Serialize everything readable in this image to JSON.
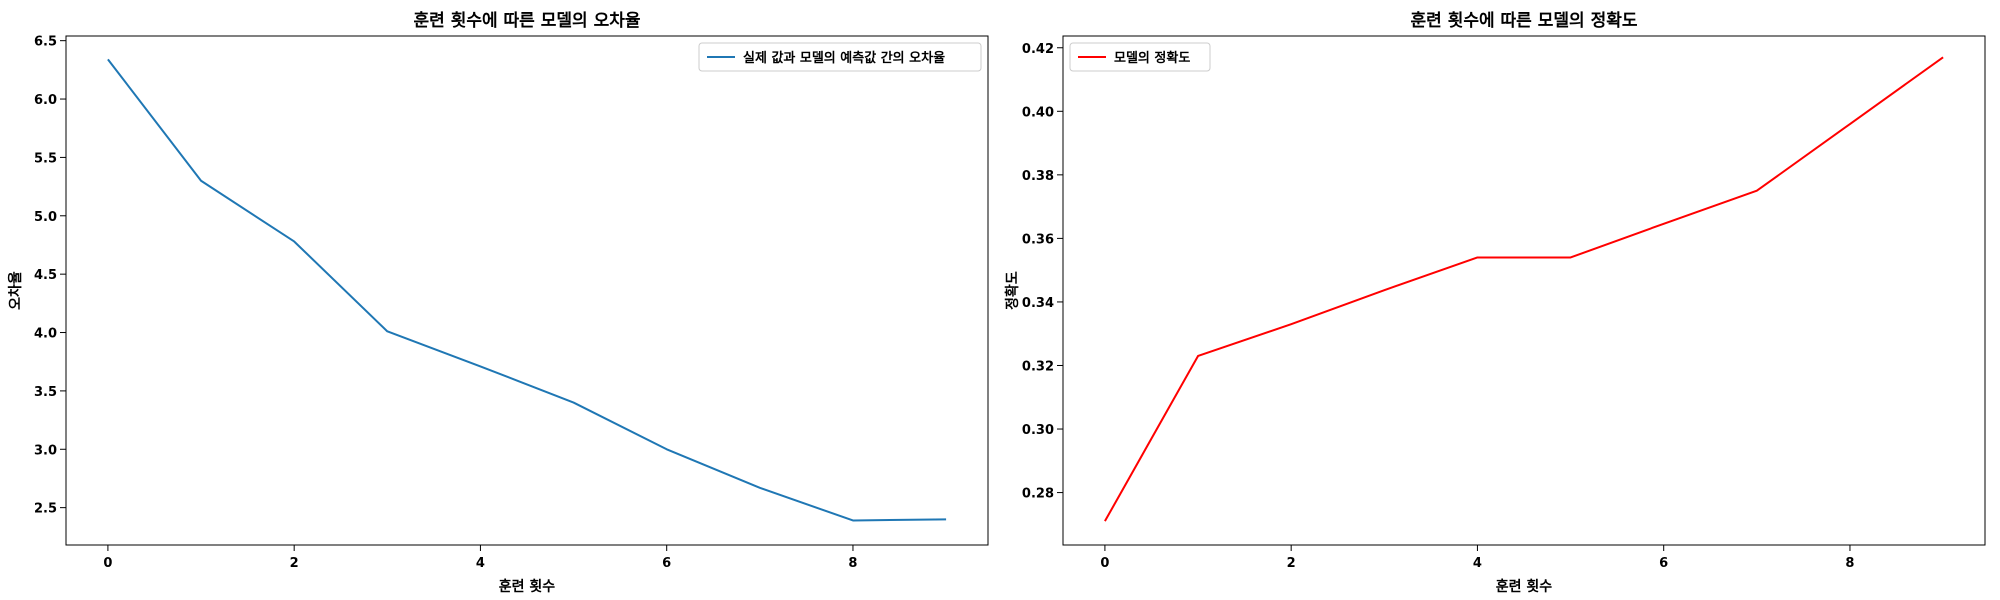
{
  "chart_data": [
    {
      "type": "line",
      "title": "훈련 횟수에 따른 모델의 오차율",
      "xlabel": "훈련 횟수",
      "ylabel": "오차율",
      "x": [
        0,
        1,
        2,
        3,
        4,
        5,
        6,
        7,
        8,
        9
      ],
      "xlim": [
        -0.45,
        9.45
      ],
      "ylim": [
        2.18,
        6.54
      ],
      "xticks": [
        0,
        2,
        4,
        6,
        8
      ],
      "yticks": [
        2.5,
        3.0,
        3.5,
        4.0,
        4.5,
        5.0,
        5.5,
        6.0,
        6.5
      ],
      "ytick_labels": [
        "2.5",
        "3.0",
        "3.5",
        "4.0",
        "4.5",
        "5.0",
        "5.5",
        "6.0",
        "6.5"
      ],
      "legend_position": "top-right",
      "series": [
        {
          "name": "실제 값과 모델의 예측값 간의 오차율",
          "color": "#1f77b4",
          "values": [
            6.34,
            5.3,
            4.78,
            4.01,
            3.71,
            3.4,
            3.0,
            2.67,
            2.39,
            2.4
          ]
        }
      ]
    },
    {
      "type": "line",
      "title": "훈련 횟수에 따른 모델의 정확도",
      "xlabel": "훈련 횟수",
      "ylabel": "정확도",
      "x": [
        0,
        1,
        2,
        3,
        4,
        5,
        6,
        7,
        8,
        9
      ],
      "xlim": [
        -0.45,
        9.45
      ],
      "ylim": [
        0.2635,
        0.4237
      ],
      "xticks": [
        0,
        2,
        4,
        6,
        8
      ],
      "yticks": [
        0.28,
        0.3,
        0.32,
        0.34,
        0.36,
        0.38,
        0.4,
        0.42
      ],
      "ytick_labels": [
        "0.28",
        "0.30",
        "0.32",
        "0.34",
        "0.36",
        "0.38",
        "0.40",
        "0.42"
      ],
      "legend_position": "top-left",
      "series": [
        {
          "name": "모델의 정확도",
          "color": "#ff0000",
          "values": [
            0.271,
            0.323,
            0.333,
            0.3437,
            0.354,
            0.354,
            0.3646,
            0.375,
            0.396,
            0.417
          ]
        }
      ]
    }
  ]
}
